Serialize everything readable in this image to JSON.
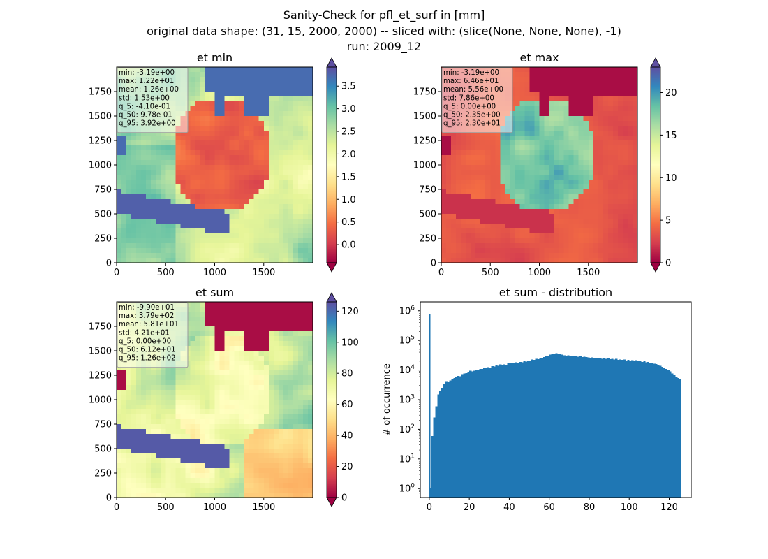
{
  "figure": {
    "title_lines": [
      "Sanity-Check for pfl_et_surf in [mm]",
      "original data shape: (31, 15, 2000, 2000) -- sliced with: (slice(None, None, None), -1)",
      "run: 2009_12"
    ]
  },
  "chart_data": [
    {
      "type": "heatmap",
      "title": "et min",
      "colormap": "Spectral",
      "xlim": [
        0,
        2000
      ],
      "ylim": [
        0,
        2000
      ],
      "xticks": [
        0,
        500,
        1000,
        1500
      ],
      "yticks": [
        0,
        250,
        500,
        750,
        1000,
        1250,
        1500,
        1750
      ],
      "colorbar": {
        "range": [
          -0.4,
          3.92
        ],
        "ticks": [
          "0.0",
          "0.5",
          "1.0",
          "1.5",
          "2.0",
          "2.5",
          "3.0",
          "3.5"
        ],
        "extend": "both"
      },
      "stats": [
        "min: -3.19e+00",
        "max: 1.22e+01",
        "mean: 1.26e+00",
        "std: 1.53e+00",
        "q_5: -4.10e-01",
        "q_50: 9.78e-01",
        "q_95: 3.92e+00"
      ]
    },
    {
      "type": "heatmap",
      "title": "et max",
      "colormap": "Spectral",
      "xlim": [
        0,
        2000
      ],
      "ylim": [
        0,
        2000
      ],
      "xticks": [
        0,
        500,
        1000,
        1500
      ],
      "yticks": [
        0,
        250,
        500,
        750,
        1000,
        1250,
        1500,
        1750
      ],
      "colorbar": {
        "range": [
          0,
          23
        ],
        "ticks": [
          "0",
          "5",
          "10",
          "15",
          "20"
        ],
        "extend": "both"
      },
      "stats": [
        "min: -3.19e+00",
        "max: 6.46e+01",
        "mean: 5.56e+00",
        "std: 7.86e+00",
        "q_5: 0.00e+00",
        "q_50: 2.35e+00",
        "q_95: 2.30e+01"
      ]
    },
    {
      "type": "heatmap",
      "title": "et sum",
      "colormap": "Spectral",
      "xlim": [
        0,
        2000
      ],
      "ylim": [
        0,
        2000
      ],
      "xticks": [
        0,
        500,
        1000,
        1500
      ],
      "yticks": [
        0,
        250,
        500,
        750,
        1000,
        1250,
        1500,
        1750
      ],
      "colorbar": {
        "range": [
          0,
          126
        ],
        "ticks": [
          "0",
          "20",
          "40",
          "60",
          "80",
          "100",
          "120"
        ],
        "extend": "both"
      },
      "stats": [
        "min: -9.90e+01",
        "max: 3.79e+02",
        "mean: 5.81e+01",
        "std: 4.21e+01",
        "q_5: 0.00e+00",
        "q_50: 6.12e+01",
        "q_95: 1.26e+02"
      ]
    },
    {
      "type": "bar",
      "title": "et sum - distribution",
      "xlabel": "",
      "ylabel": "# of occurrence",
      "yscale": "log",
      "xlim": [
        -4.5,
        131
      ],
      "ylim": [
        0.5,
        2000000
      ],
      "xticks": [
        0,
        20,
        40,
        60,
        80,
        100,
        120
      ],
      "ytick_exponents": [
        0,
        1,
        2,
        3,
        4,
        5,
        6
      ],
      "color": "#1f77b4",
      "spike": {
        "x": 0,
        "value": 780000
      },
      "bins": {
        "centers": [
          0.5,
          1.5,
          2.5,
          3.5,
          4.5,
          5.5,
          6.5,
          7.5,
          8.5,
          9.5,
          10.5,
          11.5,
          12.5,
          13.5,
          14.5,
          15.5,
          16.5,
          17.5,
          18.5,
          19.5,
          20.5,
          21.5,
          22.5,
          23.5,
          24.5,
          25.5,
          26.5,
          27.5,
          28.5,
          29.5,
          30.5,
          31.5,
          32.5,
          33.5,
          34.5,
          35.5,
          36.5,
          37.5,
          38.5,
          39.5,
          40.5,
          41.5,
          42.5,
          43.5,
          44.5,
          45.5,
          46.5,
          47.5,
          48.5,
          49.5,
          50.5,
          51.5,
          52.5,
          53.5,
          54.5,
          55.5,
          56.5,
          57.5,
          58.5,
          59.5,
          60.5,
          61.5,
          62.5,
          63.5,
          64.5,
          65.5,
          66.5,
          67.5,
          68.5,
          69.5,
          70.5,
          71.5,
          72.5,
          73.5,
          74.5,
          75.5,
          76.5,
          77.5,
          78.5,
          79.5,
          80.5,
          81.5,
          82.5,
          83.5,
          84.5,
          85.5,
          86.5,
          87.5,
          88.5,
          89.5,
          90.5,
          91.5,
          92.5,
          93.5,
          94.5,
          95.5,
          96.5,
          97.5,
          98.5,
          99.5,
          100.5,
          101.5,
          102.5,
          103.5,
          104.5,
          105.5,
          106.5,
          107.5,
          108.5,
          109.5,
          110.5,
          111.5,
          112.5,
          113.5,
          114.5,
          115.5,
          116.5,
          117.5,
          118.5,
          119.5,
          120.5,
          121.5,
          122.5,
          123.5,
          124.5,
          125.5
        ],
        "values": [
          1,
          60,
          250,
          600,
          1500,
          2000,
          2500,
          3300,
          4200,
          4000,
          4500,
          5000,
          5400,
          5800,
          6400,
          6200,
          7300,
          7600,
          7800,
          8300,
          9400,
          8900,
          9600,
          10200,
          10400,
          11000,
          10800,
          12200,
          11800,
          12500,
          12200,
          13600,
          13100,
          14800,
          14100,
          15400,
          14800,
          15700,
          15200,
          16800,
          16700,
          17600,
          16900,
          18400,
          17800,
          19000,
          18300,
          19700,
          19300,
          20900,
          20700,
          22400,
          22000,
          24100,
          23300,
          25200,
          26100,
          27700,
          28900,
          30500,
          33000,
          36400,
          34800,
          37300,
          34100,
          35600,
          32900,
          31800,
          30600,
          31200,
          29700,
          30900,
          29200,
          29800,
          28200,
          28900,
          27600,
          28400,
          27100,
          26900,
          25800,
          26700,
          25200,
          25900,
          24600,
          25600,
          24100,
          24800,
          23700,
          24600,
          23300,
          24100,
          22800,
          23900,
          22300,
          22600,
          21800,
          22400,
          21200,
          22300,
          20600,
          21600,
          20100,
          21400,
          19600,
          20800,
          19000,
          19900,
          18100,
          18600,
          17200,
          17400,
          16300,
          16000,
          14700,
          14100,
          12900,
          12200,
          11000,
          10000,
          8900,
          7600,
          6600,
          5800,
          5400,
          5000
        ]
      }
    }
  ]
}
